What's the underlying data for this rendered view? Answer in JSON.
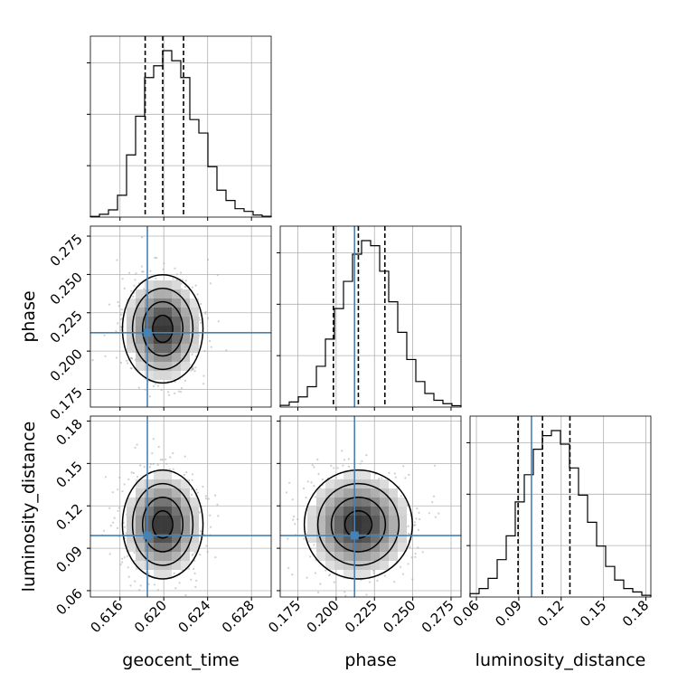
{
  "chart_data": {
    "type": "corner",
    "parameters": [
      "geocent_time",
      "phase",
      "luminosity_distance"
    ],
    "truths": {
      "geocent_time": 0.6185,
      "phase": 0.212,
      "luminosity_distance": 0.099
    },
    "quantiles": {
      "geocent_time": [
        0.6183,
        0.6199,
        0.6218
      ],
      "phase": [
        0.1982,
        0.2145,
        0.2318
      ],
      "luminosity_distance": [
        0.0895,
        0.1068,
        0.1262
      ]
    },
    "axes": {
      "geocent_time": {
        "range": [
          0.6133,
          0.6298
        ],
        "ticks": [
          "0.616",
          "0.620",
          "0.624",
          "0.628"
        ],
        "tick_values": [
          0.616,
          0.62,
          0.624,
          0.628
        ]
      },
      "phase": {
        "range": [
          0.1635,
          0.2815
        ],
        "ticks": [
          "0.175",
          "0.200",
          "0.225",
          "0.250",
          "0.275"
        ],
        "tick_values": [
          0.175,
          0.2,
          0.225,
          0.25,
          0.275
        ]
      },
      "luminosity_distance": {
        "range": [
          0.0555,
          0.1835
        ],
        "ticks": [
          "0.06",
          "0.09",
          "0.12",
          "0.15",
          "0.18"
        ],
        "tick_values": [
          0.06,
          0.09,
          0.12,
          0.15,
          0.18
        ]
      }
    },
    "histograms": {
      "geocent_time": [
        0.004,
        0.017,
        0.043,
        0.13,
        0.37,
        0.6,
        0.83,
        0.9,
        0.99,
        0.93,
        0.83,
        0.58,
        0.5,
        0.3,
        0.16,
        0.099,
        0.05,
        0.034,
        0.012,
        0.005
      ],
      "phase": [
        0.01,
        0.03,
        0.06,
        0.12,
        0.24,
        0.4,
        0.58,
        0.74,
        0.9,
        0.98,
        0.95,
        0.8,
        0.62,
        0.44,
        0.28,
        0.15,
        0.08,
        0.04,
        0.02,
        0.008
      ],
      "luminosity_distance": [
        0.02,
        0.05,
        0.11,
        0.22,
        0.36,
        0.56,
        0.72,
        0.87,
        0.95,
        0.98,
        0.9,
        0.76,
        0.6,
        0.44,
        0.3,
        0.18,
        0.1,
        0.05,
        0.03,
        0.01
      ]
    },
    "grid": true
  }
}
